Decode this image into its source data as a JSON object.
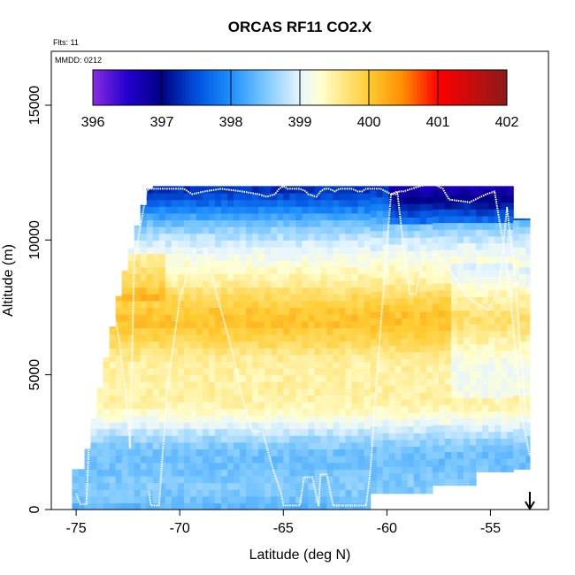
{
  "chart_data": {
    "type": "heatmap",
    "title": "ORCAS RF11 CO2.X",
    "flights_note": "Flts: 11",
    "date_note": "MMDD: 0212",
    "xlabel": "Latitude (deg N)",
    "ylabel": "Altitude (m)",
    "xlim": [
      -76.2,
      -52.2
    ],
    "ylim": [
      0,
      17000
    ],
    "x_ticks": [
      -75,
      -70,
      -65,
      -60,
      -55
    ],
    "y_ticks": [
      0,
      5000,
      10000,
      15000
    ],
    "colorbar": {
      "min": 396,
      "max": 402,
      "ticks": [
        396,
        397,
        398,
        399,
        400,
        401,
        402
      ],
      "stops": [
        {
          "value": 396.0,
          "color": "#8a2be2"
        },
        {
          "value": 396.5,
          "color": "#2200cc"
        },
        {
          "value": 397.0,
          "color": "#000080"
        },
        {
          "value": 397.5,
          "color": "#0050dd"
        },
        {
          "value": 398.0,
          "color": "#1e90ff"
        },
        {
          "value": 398.5,
          "color": "#7cc8ff"
        },
        {
          "value": 399.0,
          "color": "#e6f5ff"
        },
        {
          "value": 399.3,
          "color": "#ffffd0"
        },
        {
          "value": 399.6,
          "color": "#ffe98a"
        },
        {
          "value": 400.0,
          "color": "#ffcc33"
        },
        {
          "value": 400.5,
          "color": "#ff8c00"
        },
        {
          "value": 401.0,
          "color": "#ff0000"
        },
        {
          "value": 402.0,
          "color": "#8b1a1a"
        }
      ]
    },
    "profile": {
      "altitude_levels": [
        0,
        1000,
        2000,
        3000,
        4000,
        5000,
        6000,
        7000,
        8000,
        9000,
        10000,
        11000,
        12000
      ],
      "co2_mean": [
        398.2,
        398.4,
        398.6,
        398.9,
        399.3,
        399.6,
        399.8,
        399.9,
        399.8,
        399.5,
        398.7,
        398.0,
        397.4
      ]
    },
    "coverage_latitude_range": [
      -75.2,
      -53.1
    ],
    "flight_track": {
      "latitude": [
        -75.0,
        -74.8,
        -74.5,
        -74.3,
        -74.0,
        -73.6,
        -73.3,
        -72.9,
        -72.6,
        -72.4,
        -72.2,
        -71.6,
        -71.5,
        -71.2,
        -71.0,
        -70.5,
        -69.8,
        -69.4,
        -68.8,
        -68.0,
        -67.0,
        -66.2,
        -65.8,
        -65.4,
        -65.2,
        -65.0,
        -64.8,
        -64.2,
        -63.9,
        -63.8,
        -63.4,
        -63.2,
        -63.0,
        -62.8,
        -62.5,
        -62.3,
        -62.1,
        -61.7,
        -61.4,
        -61.2,
        -61.0,
        -60.7,
        -60.3,
        -59.8,
        -59.6,
        -59.4,
        -59.2,
        -58.8,
        -58.4,
        -57.8,
        -57.3,
        -57.0,
        -56.0,
        -55.2,
        -54.8,
        -54.2,
        -53.8,
        -53.5,
        -53.1
      ],
      "altitude": [
        600,
        200,
        200,
        4200,
        8500,
        8300,
        7800,
        6200,
        4200,
        2300,
        9200,
        11800,
        11900,
        11900,
        11900,
        11900,
        11900,
        11700,
        11800,
        11900,
        11800,
        11700,
        11600,
        11700,
        11900,
        12000,
        11900,
        11900,
        11800,
        11700,
        11600,
        11800,
        11900,
        11900,
        11800,
        11900,
        11900,
        11900,
        11800,
        11800,
        11900,
        11900,
        11900,
        11700,
        11700,
        11800,
        11800,
        11900,
        12000,
        12100,
        11900,
        11500,
        11400,
        11700,
        11800,
        9000,
        6000,
        3500,
        2000
      ],
      "segment_b": {
        "latitude": [
          -71.5,
          -71.4,
          -71.0,
          -70.6,
          -70.0,
          -69.3,
          -68.8,
          -68.3,
          -67.5,
          -67.0,
          -66.5,
          -66.0,
          -65.5,
          -65.1,
          -65.0,
          -64.8,
          -64.2,
          -64.0,
          -63.6,
          -63.3,
          -63.2,
          -62.9,
          -62.6,
          -62.4,
          -62.2,
          -61.7,
          -61.3,
          -61.0,
          -60.8,
          -60.5,
          -60.1,
          -59.8,
          -59.5,
          -59.2,
          -58.9,
          -58.6,
          -58.2,
          -57.6,
          -57.0,
          -56.0,
          -55.1,
          -54.6,
          -54.2,
          -53.8,
          -53.3
        ],
        "altitude": [
          700,
          150,
          150,
          4500,
          7800,
          9600,
          9700,
          8200,
          6000,
          4200,
          2900,
          2900,
          1500,
          600,
          150,
          150,
          150,
          1200,
          1200,
          150,
          1300,
          1300,
          150,
          150,
          150,
          150,
          150,
          150,
          1400,
          4700,
          8800,
          11700,
          11800,
          9800,
          8000,
          8000,
          9400,
          9500,
          8900,
          7800,
          7400,
          8200,
          11200,
          8500,
          3500
        ]
      }
    },
    "arrow_marker_latitude": -53.1
  }
}
